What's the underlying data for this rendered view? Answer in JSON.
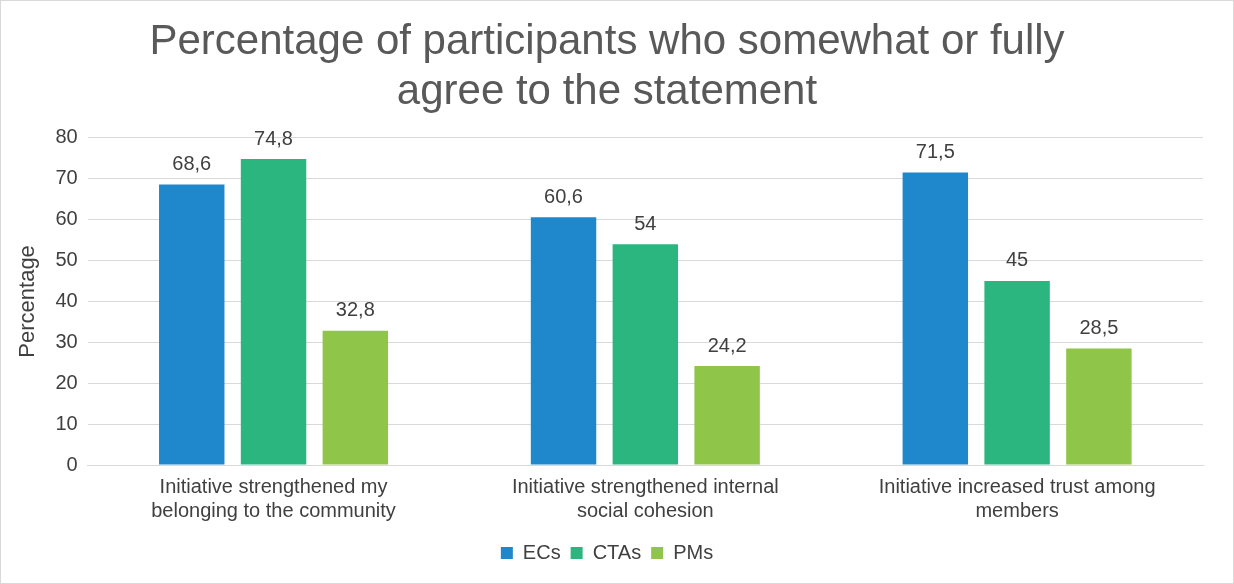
{
  "chart_data": {
    "type": "bar",
    "title": "Percentage of participants who somewhat or fully agree to the statement",
    "ylabel": "Percentage",
    "categories": [
      "Initiative strengthened my belonging to the community",
      "Initiative strengthened internal social cohesion",
      "Initiative increased trust among members"
    ],
    "series": [
      {
        "name": "ECs",
        "color": "#1f88cc",
        "values": [
          68.6,
          60.6,
          71.5
        ],
        "value_labels": [
          "68,6",
          "60,6",
          "71,5"
        ]
      },
      {
        "name": "CTAs",
        "color": "#2bb67f",
        "values": [
          74.8,
          54,
          45
        ],
        "value_labels": [
          "74,8",
          "54",
          "45"
        ]
      },
      {
        "name": "PMs",
        "color": "#8fc649",
        "values": [
          32.8,
          24.2,
          28.5
        ],
        "value_labels": [
          "32,8",
          "24,2",
          "28,5"
        ]
      }
    ],
    "ylim": [
      0,
      80
    ],
    "yticks": [
      0,
      10,
      20,
      30,
      40,
      50,
      60,
      70,
      80
    ],
    "grid": "y",
    "legend": "bottom"
  }
}
